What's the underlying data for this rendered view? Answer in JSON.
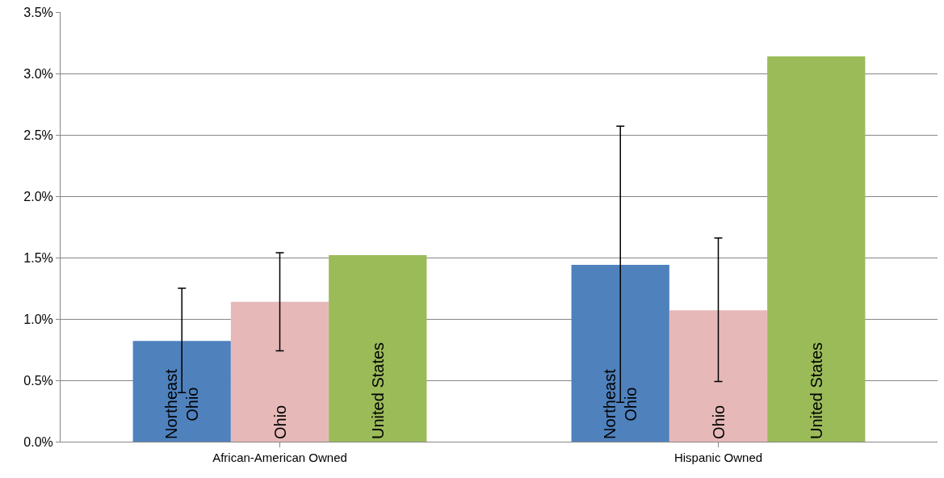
{
  "chart_data": {
    "type": "bar",
    "categories": [
      "African-American Owned",
      "Hispanic Owned"
    ],
    "series": [
      {
        "name": "Northeast Ohio",
        "color": "#4f81bd",
        "values": [
          0.82,
          1.44
        ],
        "errors": [
          [
            0.4,
            1.25
          ],
          [
            0.32,
            2.57
          ]
        ]
      },
      {
        "name": "Ohio",
        "color": "#e6b9b8",
        "values": [
          1.14,
          1.07
        ],
        "errors": [
          [
            0.74,
            1.54
          ],
          [
            0.49,
            1.66
          ]
        ]
      },
      {
        "name": "United States",
        "color": "#9bbb59",
        "values": [
          1.52,
          3.14
        ]
      }
    ],
    "ylim": [
      0,
      3.5
    ],
    "yticks": [
      {
        "value": 0,
        "label": "0.0%"
      },
      {
        "value": 0.5,
        "label": "0.5%"
      },
      {
        "value": 1,
        "label": "1.0%"
      },
      {
        "value": 1.5,
        "label": "1.5%"
      },
      {
        "value": 2,
        "label": "2.0%"
      },
      {
        "value": 2.5,
        "label": "2.5%"
      },
      {
        "value": 3,
        "label": "3.0%"
      },
      {
        "value": 3.5,
        "label": "3.5%"
      }
    ],
    "grid": "y",
    "legend": false
  }
}
